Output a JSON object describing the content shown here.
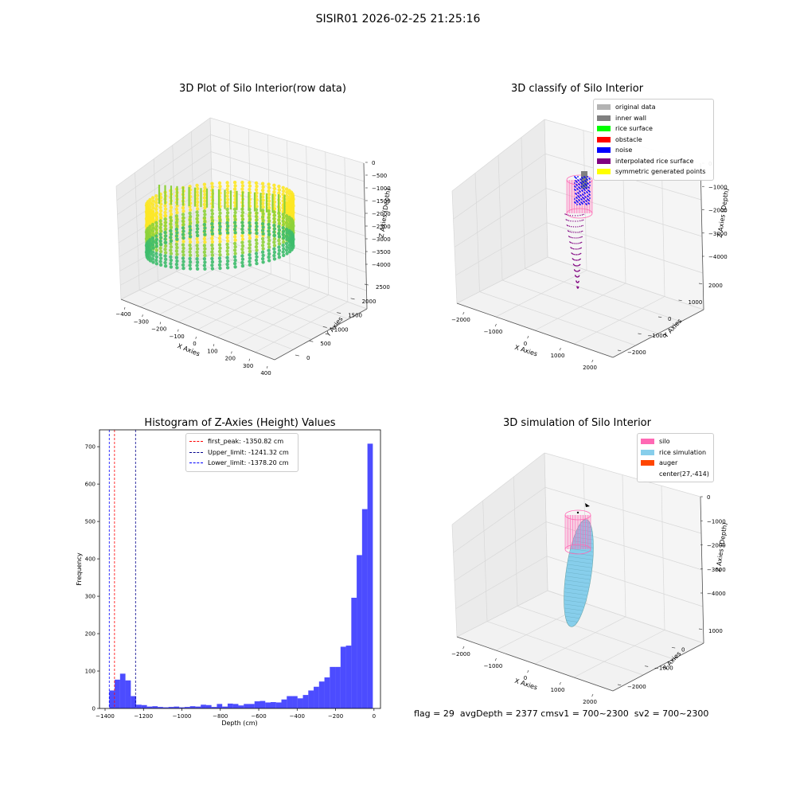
{
  "figure": {
    "suptitle": "SISIR01 2026-02-25 21:25:16",
    "footer": {
      "flag": "flag = 29",
      "avg_depth": "avgDepth = 2377 cm",
      "sv1": "sv1 = 700~2300",
      "sv2": "sv2 = 700~2300"
    }
  },
  "chart_data": [
    {
      "type": "scatter",
      "id": "raw",
      "title": "3D Plot of Silo Interior(row data)",
      "xlabel": "X Axies",
      "ylabel": "Y Axies",
      "zlabel": "Z Axies (Depth)",
      "x_ticks": [
        "−400",
        "−300",
        "−200",
        "−100",
        "0",
        "100",
        "200",
        "300",
        "400"
      ],
      "y_ticks": [
        "0",
        "500",
        "1000",
        "1500",
        "2000",
        "2500"
      ],
      "z_ticks": [
        "0",
        "−500",
        "−1000",
        "−1500",
        "−2000",
        "−2500",
        "−3000",
        "−3500",
        "−4000"
      ],
      "xlim": [
        -400,
        400
      ],
      "ylim": [
        0,
        2500
      ],
      "zlim": [
        -4000,
        0
      ],
      "colormap": [
        "#3dbd6b",
        "#8dd13a",
        "#fde725"
      ],
      "grid": true
    },
    {
      "type": "scatter",
      "id": "classify",
      "title": "3D classify of Silo Interior",
      "xlabel": "X Axies",
      "ylabel": "Y Axies",
      "zlabel": "Z Axies (Depth)",
      "x_ticks": [
        "−2000",
        "−1000",
        "0",
        "1000",
        "2000"
      ],
      "y_ticks": [
        "−2000",
        "−1000",
        "0",
        "1000",
        "2000"
      ],
      "z_ticks": [
        "0",
        "−1000",
        "−2000",
        "−3000",
        "−4000"
      ],
      "xlim": [
        -2000,
        2000
      ],
      "ylim": [
        -2000,
        2000
      ],
      "zlim": [
        -4000,
        0
      ],
      "legend": {
        "placement": "top-right",
        "entries": [
          {
            "label": "original data",
            "color": "#b3b3b3"
          },
          {
            "label": "inner wall",
            "color": "#808080"
          },
          {
            "label": "rice surface",
            "color": "#00ff00"
          },
          {
            "label": "obstacle",
            "color": "#ff0000"
          },
          {
            "label": "noise",
            "color": "#0000ff"
          },
          {
            "label": "interpolated rice surface",
            "color": "#800080"
          },
          {
            "label": "symmetric generated points",
            "color": "#ffff00"
          }
        ]
      },
      "grid": true
    },
    {
      "type": "bar",
      "id": "hist",
      "title": "Histogram of Z-Axies (Height) Values",
      "xlabel": "Depth (cm)",
      "ylabel": "Frequency",
      "xlim": [
        -1400,
        0
      ],
      "ylim": [
        0,
        745
      ],
      "x_ticks": [
        -1400,
        -1200,
        -1000,
        -800,
        -600,
        -400,
        -200,
        0
      ],
      "y_ticks": [
        0,
        100,
        200,
        300,
        400,
        500,
        600,
        700
      ],
      "bar_color": "#0000ff",
      "bar_alpha": 0.7,
      "bin_width": 28,
      "bins": [
        {
          "left": -1378,
          "value": 48
        },
        {
          "left": -1350,
          "value": 77
        },
        {
          "left": -1322,
          "value": 93
        },
        {
          "left": -1294,
          "value": 75
        },
        {
          "left": -1266,
          "value": 33
        },
        {
          "left": -1238,
          "value": 10
        },
        {
          "left": -1210,
          "value": 9
        },
        {
          "left": -1182,
          "value": 5
        },
        {
          "left": -1154,
          "value": 6
        },
        {
          "left": -1126,
          "value": 4
        },
        {
          "left": -1098,
          "value": 3
        },
        {
          "left": -1070,
          "value": 4
        },
        {
          "left": -1042,
          "value": 5
        },
        {
          "left": -1014,
          "value": 3
        },
        {
          "left": -986,
          "value": 4
        },
        {
          "left": -958,
          "value": 6
        },
        {
          "left": -930,
          "value": 5
        },
        {
          "left": -902,
          "value": 10
        },
        {
          "left": -874,
          "value": 9
        },
        {
          "left": -846,
          "value": 4
        },
        {
          "left": -818,
          "value": 12
        },
        {
          "left": -790,
          "value": 5
        },
        {
          "left": -762,
          "value": 13
        },
        {
          "left": -734,
          "value": 12
        },
        {
          "left": -706,
          "value": 8
        },
        {
          "left": -678,
          "value": 12
        },
        {
          "left": -650,
          "value": 12
        },
        {
          "left": -622,
          "value": 19
        },
        {
          "left": -594,
          "value": 20
        },
        {
          "left": -566,
          "value": 16
        },
        {
          "left": -538,
          "value": 17
        },
        {
          "left": -510,
          "value": 16
        },
        {
          "left": -482,
          "value": 24
        },
        {
          "left": -454,
          "value": 33
        },
        {
          "left": -426,
          "value": 33
        },
        {
          "left": -398,
          "value": 27
        },
        {
          "left": -370,
          "value": 36
        },
        {
          "left": -342,
          "value": 48
        },
        {
          "left": -314,
          "value": 58
        },
        {
          "left": -286,
          "value": 72
        },
        {
          "left": -258,
          "value": 83
        },
        {
          "left": -230,
          "value": 111
        },
        {
          "left": -202,
          "value": 111
        },
        {
          "left": -174,
          "value": 165
        },
        {
          "left": -146,
          "value": 168
        },
        {
          "left": -118,
          "value": 296
        },
        {
          "left": -90,
          "value": 410
        },
        {
          "left": -62,
          "value": 533
        },
        {
          "left": -34,
          "value": 708
        }
      ],
      "vlines": [
        {
          "label": "first_peak: -1350.82 cm",
          "x": -1350.82,
          "color": "#ff0000"
        },
        {
          "label": "Upper_limit: -1241.32 cm",
          "x": -1241.32,
          "color": "#00008b"
        },
        {
          "label": "Lower_limit: -1378.20 cm",
          "x": -1378.2,
          "color": "#0000ff"
        }
      ],
      "legend": {
        "placement": "top-center"
      }
    },
    {
      "type": "scatter",
      "id": "simulation",
      "title": "3D simulation of Silo Interior",
      "xlabel": "X Axies",
      "ylabel": "Y Axies",
      "zlabel": "Z Axies (Depth)",
      "x_ticks": [
        "−2000",
        "−1000",
        "0",
        "1000",
        "2000"
      ],
      "y_ticks": [
        "−2000",
        "−1000",
        "0",
        "1000"
      ],
      "z_ticks": [
        "0",
        "−1000",
        "−2000",
        "−3000",
        "−4000"
      ],
      "xlim": [
        -2000,
        2000
      ],
      "ylim": [
        -2000,
        1000
      ],
      "zlim": [
        -4000,
        0
      ],
      "legend": {
        "placement": "top-right",
        "entries": [
          {
            "label": "silo",
            "color": "#ff69b4"
          },
          {
            "label": "rice simulation",
            "color": "#87ceeb"
          },
          {
            "label": "auger",
            "color": "#ff4500"
          },
          {
            "label": "center(27,-414)",
            "color": ""
          }
        ]
      },
      "grid": true
    }
  ]
}
